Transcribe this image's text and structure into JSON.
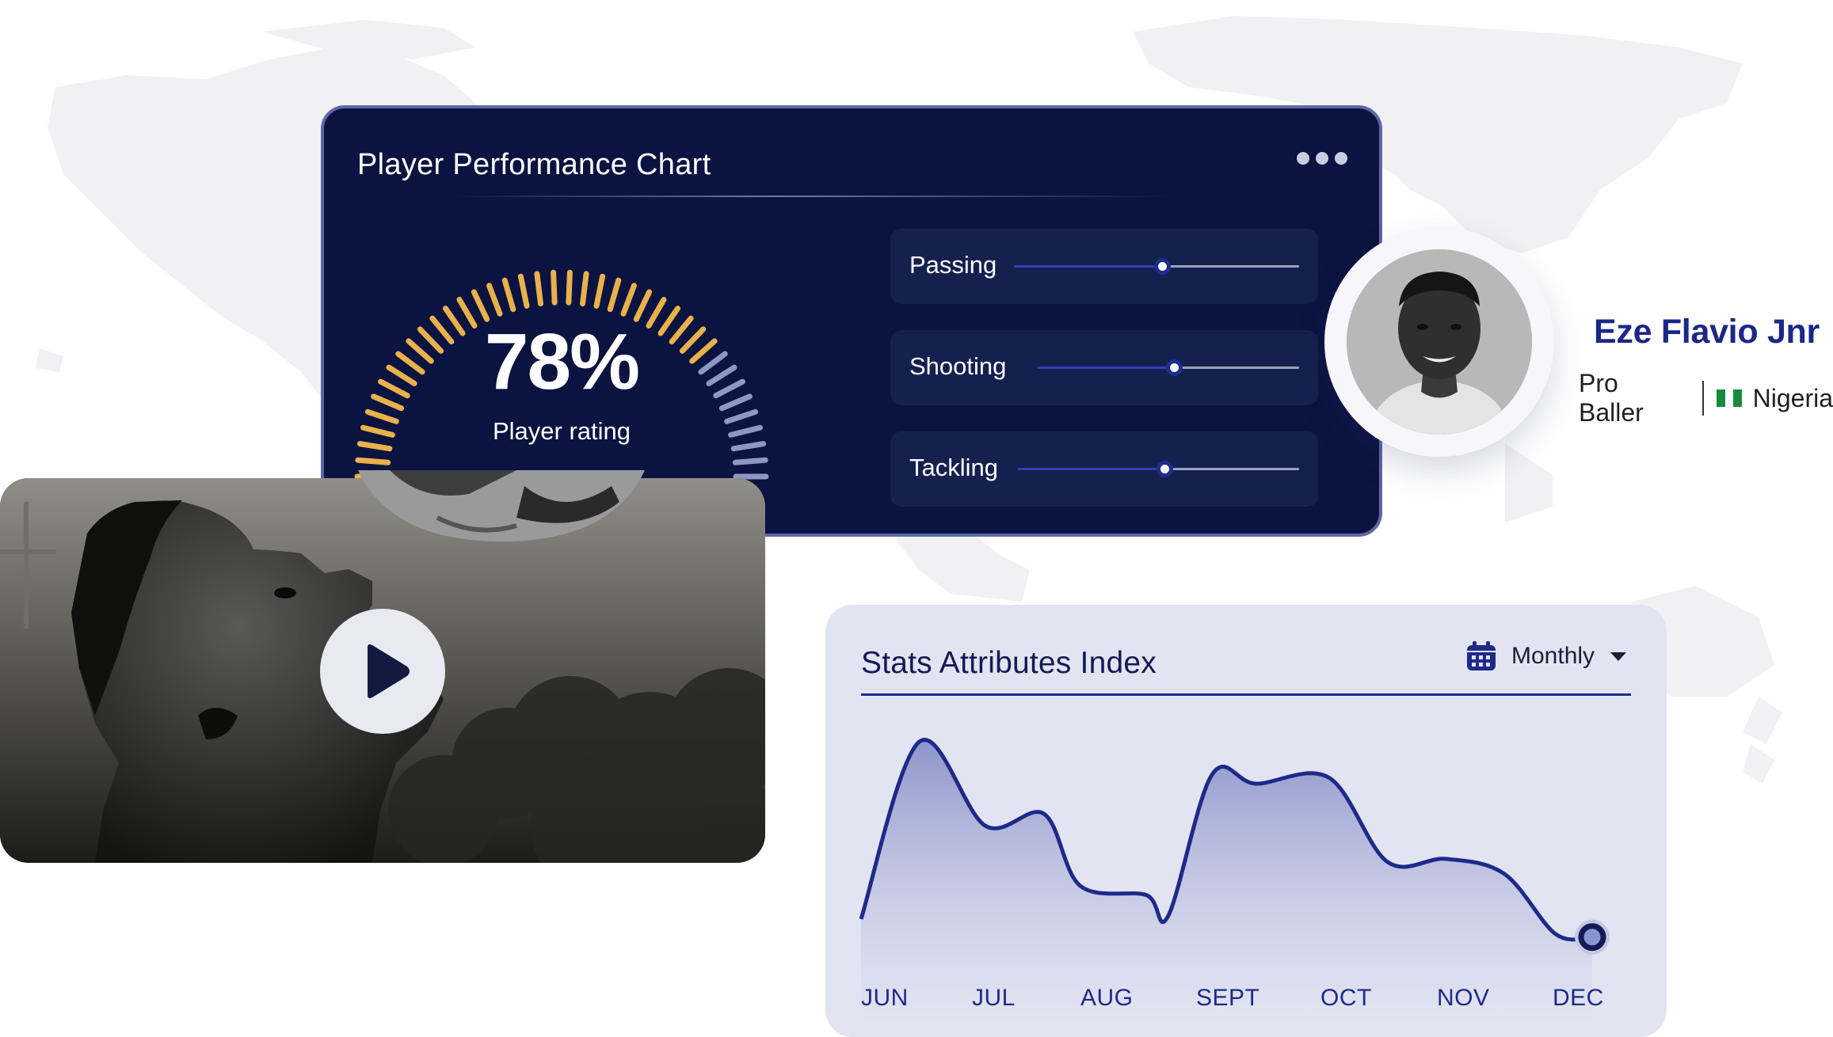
{
  "performance_card": {
    "title": "Player Performance Chart",
    "rating_value": "78%",
    "rating_label": "Player rating",
    "rating_percent": 78,
    "skills": [
      {
        "label": "Passing",
        "level": 0.52
      },
      {
        "label": "Shooting",
        "level": 0.52
      },
      {
        "label": "Tackling",
        "level": 0.52
      }
    ]
  },
  "profile": {
    "name": "Eze Flavio Jnr",
    "role": "Pro Baller",
    "country": "Nigeria"
  },
  "video": {
    "play_icon": "play-icon"
  },
  "stats_card": {
    "title": "Stats Attributes Index",
    "period": "Monthly",
    "period_icon": "calendar-icon",
    "chart_data": {
      "type": "area",
      "categories": [
        "JUN",
        "JUL",
        "AUG",
        "SEPT",
        "OCT",
        "NOV",
        "DEC"
      ],
      "x": [
        0,
        0.08,
        0.17,
        0.25,
        0.3,
        0.39,
        0.42,
        0.48,
        0.54,
        0.64,
        0.72,
        0.8,
        0.88,
        0.95,
        1.0
      ],
      "values": [
        35,
        94,
        66,
        70,
        46,
        43,
        36,
        83,
        80,
        82,
        54,
        55,
        50,
        30,
        29
      ],
      "ylim": [
        0,
        100
      ],
      "line_color": "#1e2a8a",
      "fill_color_top": "#8890c8"
    }
  },
  "colors": {
    "card_navy": "#0b1340",
    "gauge_gold": "#e8b14c",
    "gauge_muted": "#8e97c3",
    "accent_blue": "#1e2a8a"
  }
}
